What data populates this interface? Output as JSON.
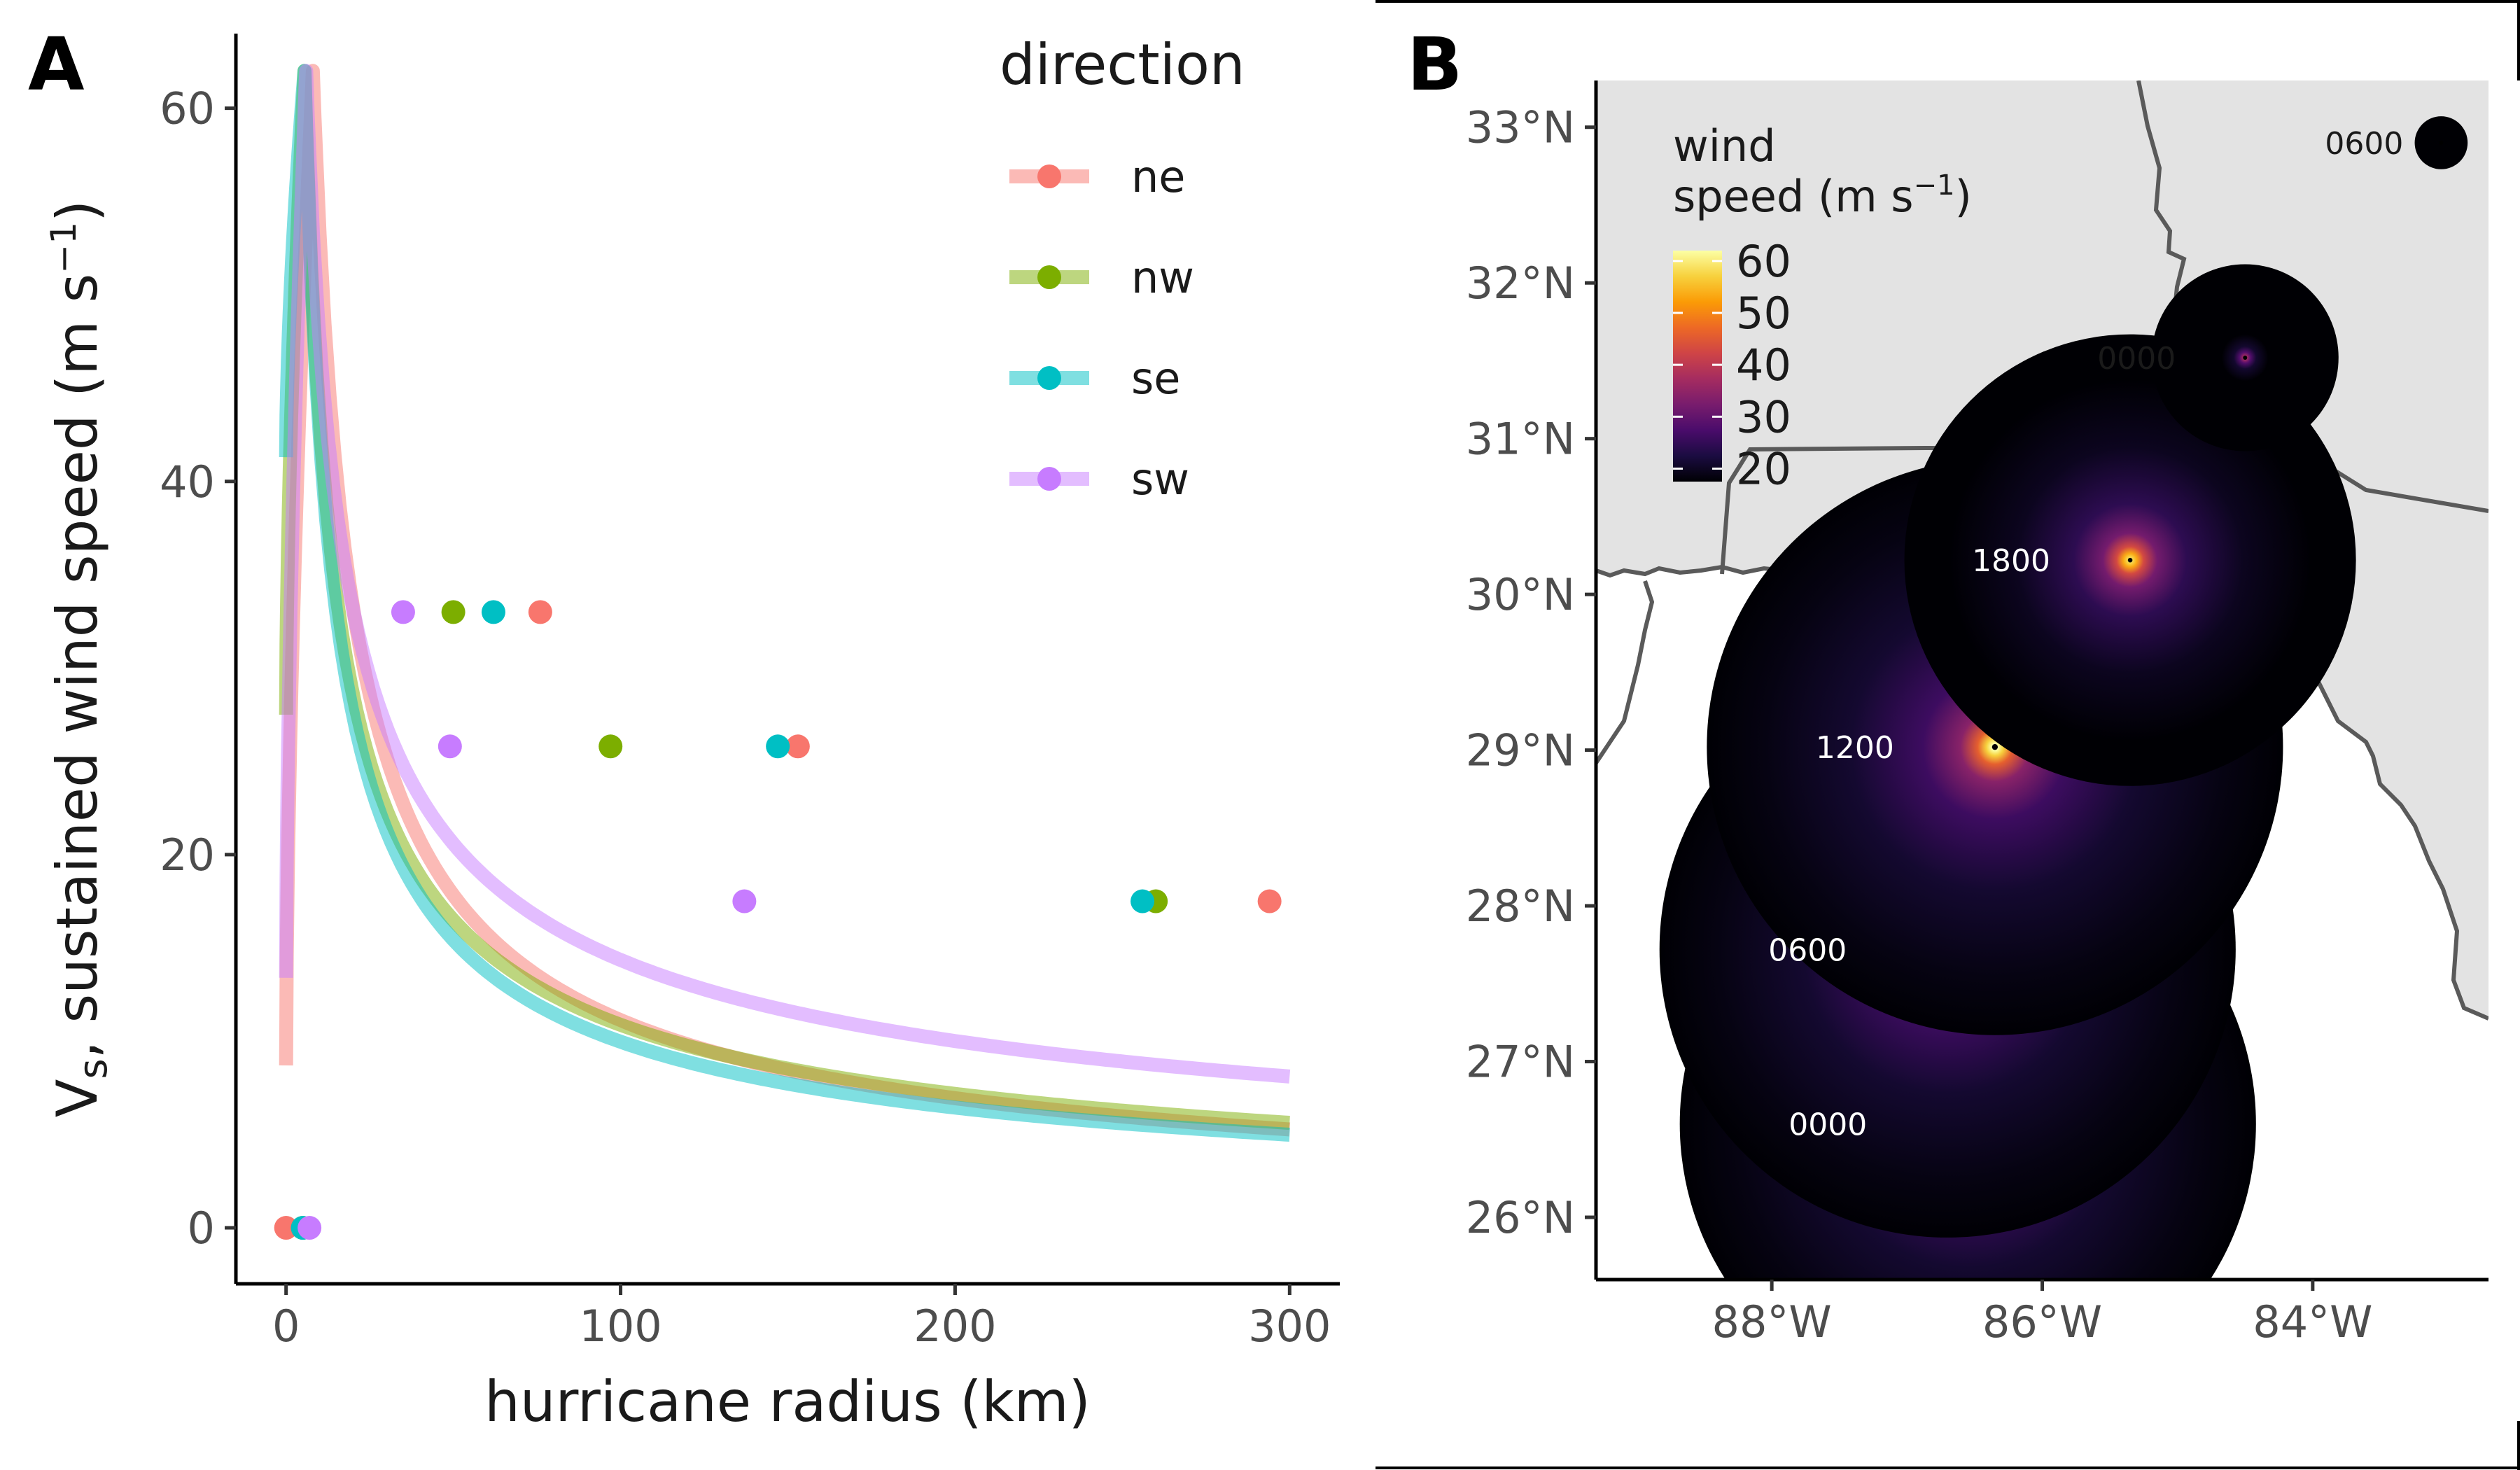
{
  "panel_a_tag": "A",
  "panel_b_tag": "B",
  "colors": {
    "ne": "#F8766D",
    "nw": "#7CAE00",
    "se": "#00BFC4",
    "sw": "#C77CFF",
    "land": "#e3e3e3",
    "border": "#5a5a5a"
  },
  "chart_data": [
    {
      "type": "line",
      "panel": "A",
      "xlabel": "hurricane radius (km)",
      "ylabel_main": "V",
      "ylabel_sub": "s",
      "ylabel_rest": ", sustained wind speed (m s",
      "ylabel_sup": "−1",
      "ylabel_end": ")",
      "xlim": [
        -15,
        315
      ],
      "ylim": [
        -3,
        64
      ],
      "x_ticks": [
        0,
        100,
        200,
        300
      ],
      "y_ticks": [
        0,
        20,
        40,
        60
      ],
      "grid": false,
      "legend": {
        "title": "direction",
        "placement": "top-right",
        "entries": [
          "ne",
          "nw",
          "se",
          "sw"
        ]
      },
      "series": [
        {
          "name": "ne",
          "curve": {
            "rmax": 8,
            "vmax": 62,
            "b": 0.68,
            "v_at_zero": 8.7
          },
          "points": [
            [
              0,
              0
            ],
            [
              76,
              33
            ],
            [
              153,
              25.8
            ],
            [
              294,
              17.5
            ]
          ]
        },
        {
          "name": "nw",
          "curve": {
            "rmax": 5.5,
            "vmax": 62,
            "b": 0.6,
            "v_at_zero": 27.5
          },
          "points": [
            [
              5,
              0
            ],
            [
              50,
              33
            ],
            [
              97,
              25.8
            ],
            [
              260,
              17.5
            ]
          ]
        },
        {
          "name": "se",
          "curve": {
            "rmax": 5.5,
            "vmax": 62,
            "b": 0.63,
            "v_at_zero": 41.3
          },
          "points": [
            [
              5,
              0
            ],
            [
              62,
              33
            ],
            [
              147,
              25.8
            ],
            [
              256,
              17.5
            ]
          ]
        },
        {
          "name": "sw",
          "curve": {
            "rmax": 6,
            "vmax": 62,
            "b": 0.52,
            "v_at_zero": 13.4
          },
          "points": [
            [
              7,
              0
            ],
            [
              35,
              33
            ],
            [
              49,
              25.8
            ],
            [
              137,
              17.5
            ]
          ]
        }
      ]
    },
    {
      "type": "heatmap",
      "panel": "B",
      "lon_range": [
        -89.3,
        -82.7
      ],
      "lat_range": [
        25.6,
        33.3
      ],
      "lon_ticks": [
        -88,
        -86,
        -84
      ],
      "lon_tick_labels": [
        "88°W",
        "86°W",
        "84°W"
      ],
      "lat_ticks": [
        26,
        27,
        28,
        29,
        30,
        31,
        32,
        33
      ],
      "lat_tick_labels": [
        "26°N",
        "27°N",
        "28°N",
        "29°N",
        "30°N",
        "31°N",
        "32°N",
        "33°N"
      ],
      "colorbar": {
        "title_line1": "wind",
        "title_line2": "speed (m s",
        "title_sup": "−1",
        "title_end": ")",
        "ticks": [
          20,
          30,
          40,
          50,
          60
        ],
        "range": [
          17.5,
          62
        ],
        "stops": [
          "#000004",
          "#1b0c41",
          "#4a0c6b",
          "#781c6d",
          "#a52c60",
          "#cf4446",
          "#ed6925",
          "#fb9b06",
          "#f7d13d",
          "#fcffa4"
        ]
      },
      "storm_track": [
        {
          "time": "0000",
          "lon": -86.55,
          "lat": 26.6,
          "peak": 62,
          "radius_deg": 1.85
        },
        {
          "time": "0600",
          "lon": -86.7,
          "lat": 27.72,
          "peak": 62,
          "radius_deg": 1.85
        },
        {
          "time": "1200",
          "lon": -86.35,
          "lat": 29.02,
          "peak": 62,
          "radius_deg": 1.85
        },
        {
          "time": "1800",
          "lon": -85.35,
          "lat": 30.22,
          "peak": 58,
          "radius_deg": 1.45
        },
        {
          "time": "0000",
          "lon": -84.5,
          "lat": 31.52,
          "peak": 38,
          "radius_deg": 0.6
        },
        {
          "time": "0600",
          "lon": -83.05,
          "lat": 32.9,
          "peak": 20,
          "radius_deg": 0.17
        }
      ]
    }
  ]
}
